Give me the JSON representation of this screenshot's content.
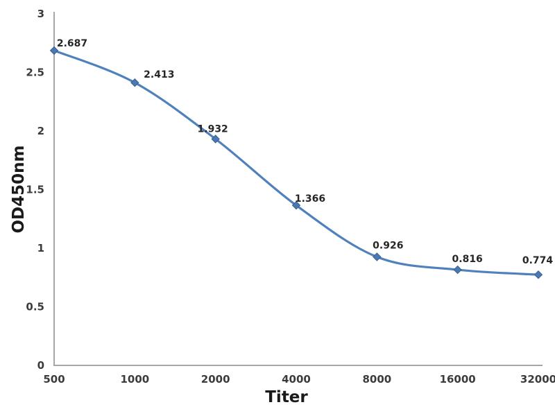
{
  "chart_data": {
    "type": "line",
    "title": "",
    "xlabel": "Titer",
    "ylabel": "OD450nm",
    "categories": [
      "500",
      "1000",
      "2000",
      "4000",
      "8000",
      "16000",
      "32000"
    ],
    "series": [
      {
        "name": "OD450nm",
        "values": [
          2.687,
          2.413,
          1.932,
          1.366,
          0.926,
          0.816,
          0.774
        ]
      }
    ],
    "point_labels": [
      "2.687",
      "2.413",
      "1.932",
      "1.366",
      "0.926",
      "0.816",
      "0.774"
    ],
    "y_ticks": [
      "3",
      "2.5",
      "2",
      "1.5",
      "1",
      "0.5",
      "0"
    ],
    "y_tick_values": [
      3,
      2.5,
      2,
      1.5,
      1,
      0.5,
      0
    ],
    "ylim": [
      0,
      3
    ],
    "grid": false,
    "legend": "none",
    "smooth": true,
    "marker": "diamond",
    "line_color": "#4f81bd",
    "marker_fill": "#4a78b0",
    "marker_edge": "#3a608f",
    "axis_color": "#a6a6a6",
    "tick_label_color": "#3b3b3b",
    "data_label_color": "#262626",
    "label_dx": [
      26,
      35,
      -4,
      20,
      16,
      14,
      -1
    ],
    "label_dy": [
      -6,
      -7,
      -10,
      -5,
      -12,
      -11,
      -16
    ]
  }
}
